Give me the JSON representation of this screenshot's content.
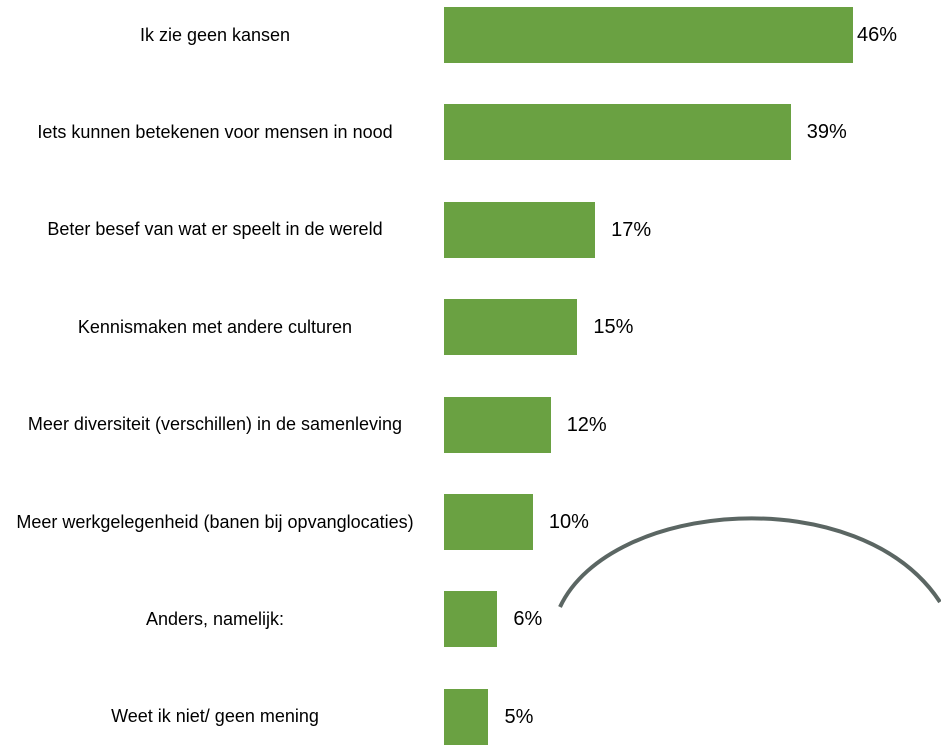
{
  "chart_data": {
    "type": "barh",
    "categories": [
      "Ik zie geen kansen",
      "Iets kunnen betekenen voor mensen in nood",
      "Beter besef van wat er speelt in de wereld",
      "Kennismaken met andere culturen",
      "Meer diversiteit (verschillen) in de samenleving",
      "Meer werkgelegenheid (banen bij opvanglocaties)",
      "Anders, namelijk:",
      "Weet ik niet/ geen mening"
    ],
    "values": [
      46,
      39,
      17,
      15,
      12,
      10,
      6,
      5
    ],
    "value_labels": [
      "46%",
      "39%",
      "17%",
      "15%",
      "12%",
      "10%",
      "6%",
      "5%"
    ],
    "color": "#6aa142"
  }
}
